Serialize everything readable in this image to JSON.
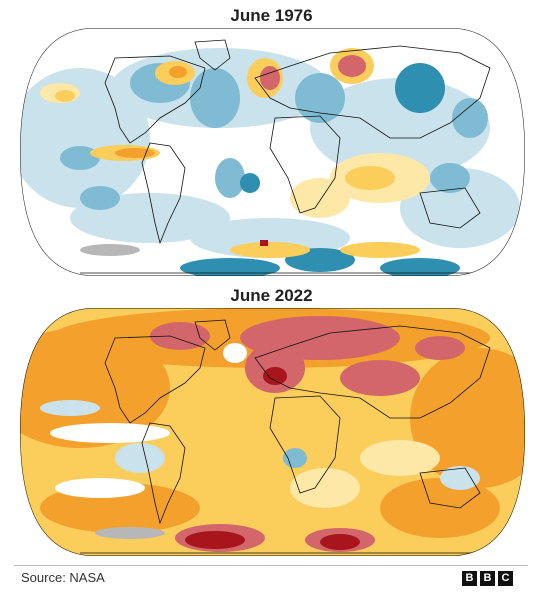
{
  "maps": [
    {
      "title": "June 1976",
      "palette": "cool"
    },
    {
      "title": "June 2022",
      "palette": "warm"
    }
  ],
  "colors": {
    "deep_blue": "#2f8fb0",
    "mid_blue": "#7fbcd3",
    "pale_blue": "#c9e2ec",
    "neutral": "#ffffff",
    "pale_yellow": "#fde8a8",
    "yellow": "#fbcd5a",
    "orange": "#f4a02c",
    "red": "#d2666b",
    "dark_red": "#a8151c",
    "no_data": "#b7b7b7"
  },
  "footer": {
    "source": "Source: NASA",
    "logo_letters": [
      "B",
      "B",
      "C"
    ]
  }
}
